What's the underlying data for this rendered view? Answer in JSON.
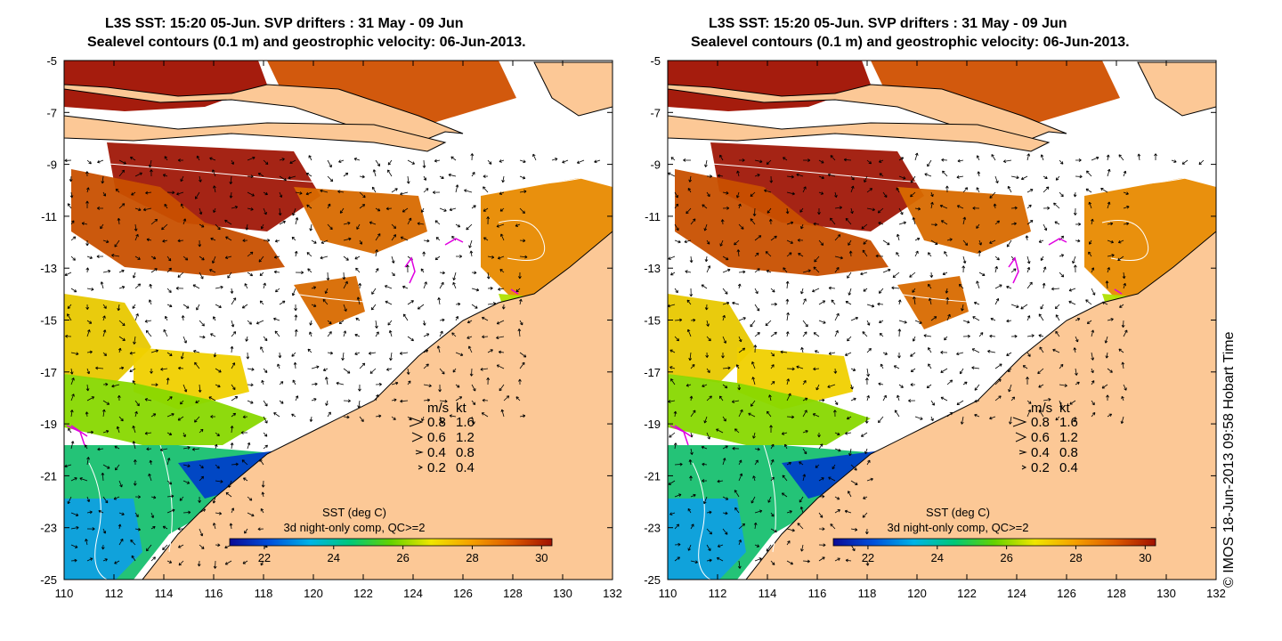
{
  "panels": [
    {
      "title_line1": "L3S SST: 15:20 05-Jun. SVP drifters : 31 May - 09 Jun",
      "title_line2": "Sealevel contours (0.1 m) and geostrophic velocity: 06-Jun-2013."
    },
    {
      "title_line1": "L3S SST: 15:20 05-Jun. SVP drifters : 31 May - 09 Jun",
      "title_line2": "Sealevel contours (0.1 m) and geostrophic velocity: 06-Jun-2013."
    }
  ],
  "map": {
    "lon_ticks": [
      "110",
      "112",
      "114",
      "116",
      "118",
      "120",
      "122",
      "124",
      "126",
      "128",
      "130",
      "132"
    ],
    "lat_ticks": [
      "-5",
      "-7",
      "-9",
      "-11",
      "-13",
      "-15",
      "-17",
      "-19",
      "-21",
      "-23",
      "-25"
    ],
    "lon_range": [
      110,
      132
    ],
    "lat_range": [
      -25,
      -5
    ],
    "land_color": "#fcc896"
  },
  "velocity_legend": {
    "header_ms": "m/s",
    "header_kt": "kt",
    "rows": [
      {
        "ms": "0.8",
        "kt": "1.6"
      },
      {
        "ms": "0.6",
        "kt": "1.2"
      },
      {
        "ms": "0.4",
        "kt": "0.8"
      },
      {
        "ms": "0.2",
        "kt": "0.4"
      }
    ]
  },
  "colorbar": {
    "title": "SST (deg C)",
    "subtitle": "3d night-only comp, QC>=2",
    "ticks": [
      "22",
      "24",
      "26",
      "28",
      "30"
    ],
    "range": [
      21,
      30.3
    ],
    "colors": [
      "#0a0a96",
      "#0050dc",
      "#00b4e6",
      "#00c878",
      "#64d200",
      "#f0e600",
      "#f5a000",
      "#dc5a00",
      "#a01000"
    ]
  },
  "credit": "© IMOS 18-Jun-2013 09:58 Hobart Time"
}
